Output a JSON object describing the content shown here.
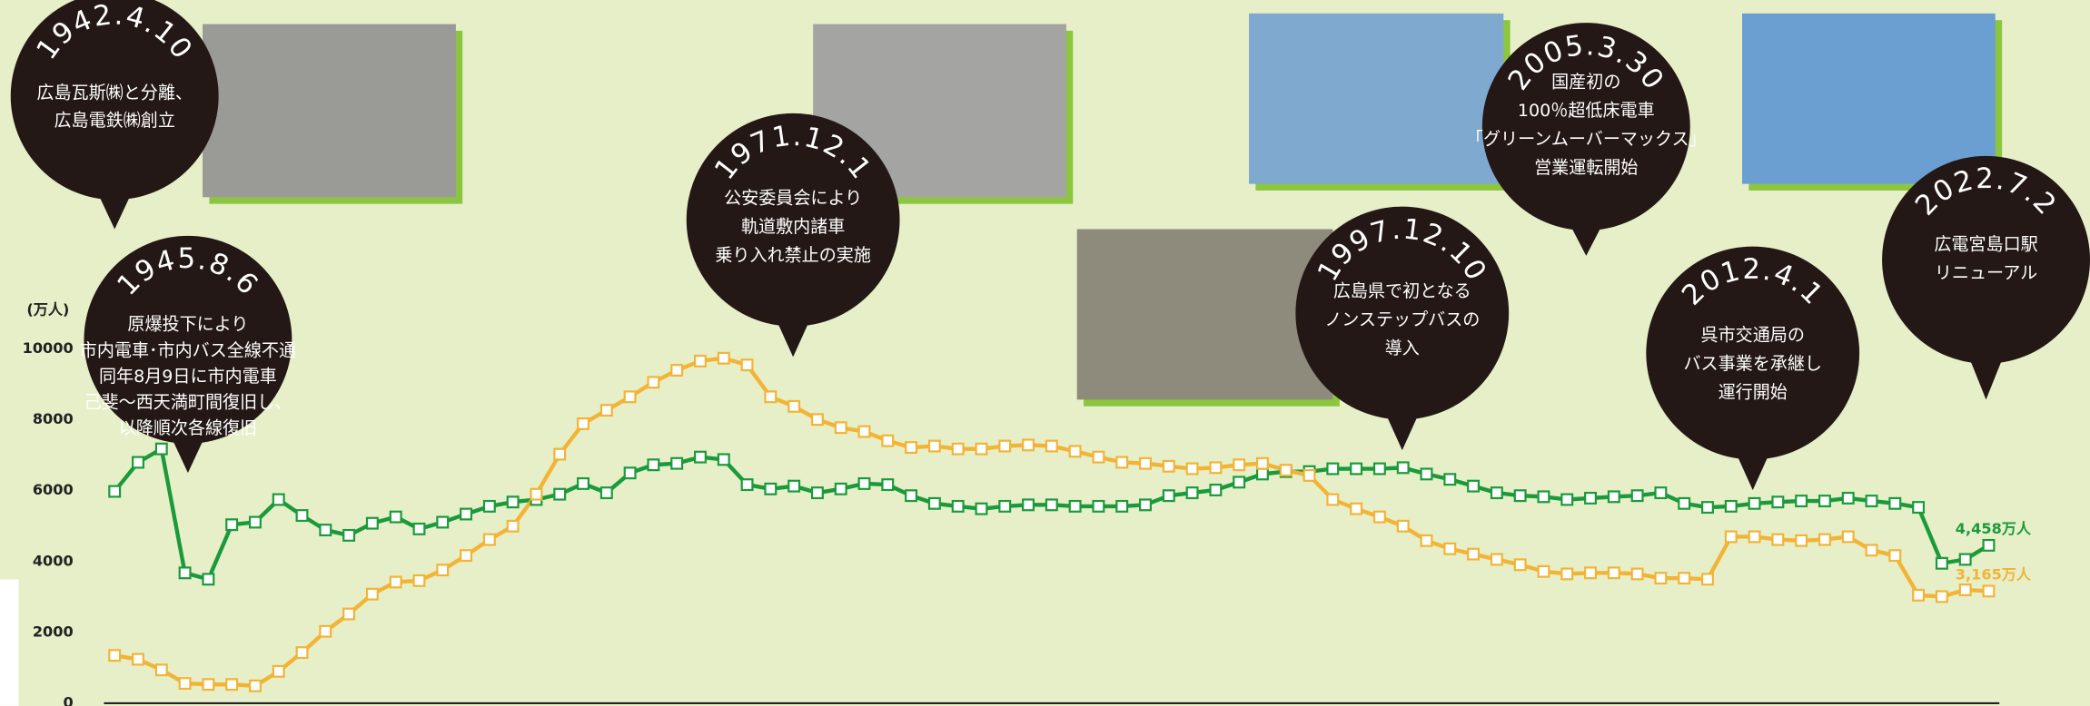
{
  "chart_data": {
    "type": "line",
    "y_label": "(万人)",
    "ylim": [
      0,
      10000
    ],
    "yticks": [
      0,
      2000,
      4000,
      6000,
      8000,
      10000
    ],
    "categories": [
      null,
      null,
      null,
      null,
      null,
      null,
      null,
      null,
      null,
      null,
      null,
      null,
      null,
      null,
      null,
      null,
      null,
      null,
      null,
      null,
      null,
      null,
      null,
      null,
      null,
      null,
      null,
      null,
      null,
      null,
      null,
      null,
      null,
      null,
      null,
      null,
      null,
      null,
      null,
      null,
      null,
      null,
      null,
      null,
      null,
      null,
      null,
      null,
      null,
      null,
      null,
      null,
      null,
      null,
      null,
      null,
      null,
      null,
      null,
      null,
      null,
      null,
      null,
      null,
      null,
      null,
      null,
      null,
      null,
      null,
      null,
      null,
      null,
      null,
      null,
      null,
      null,
      null,
      null,
      null,
      null
    ],
    "series": [
      {
        "color": "#1b9a3b",
        "values": [
          5980,
          6800,
          7180,
          3680,
          3500,
          5040,
          5110,
          5750,
          5300,
          4890,
          4740,
          5080,
          5260,
          4920,
          5110,
          5340,
          5560,
          5680,
          5750,
          5900,
          6200,
          5940,
          6500,
          6730,
          6770,
          6950,
          6880,
          6170,
          6050,
          6130,
          5940,
          6050,
          6200,
          6170,
          5860,
          5640,
          5560,
          5490,
          5560,
          5600,
          5600,
          5560,
          5560,
          5560,
          5600,
          5860,
          5940,
          6020,
          6240,
          6470,
          6540,
          6540,
          6620,
          6620,
          6620,
          6650,
          6470,
          6320,
          6130,
          5940,
          5860,
          5830,
          5750,
          5790,
          5830,
          5860,
          5940,
          5640,
          5530,
          5560,
          5640,
          5680,
          5710,
          5710,
          5790,
          5710,
          5640,
          5530,
          3950,
          4060,
          4458
        ],
        "value_labels": [
          null,
          null,
          null,
          null,
          null,
          null,
          null,
          null,
          null,
          null,
          null,
          null,
          null,
          null,
          null,
          null,
          null,
          null,
          null,
          null,
          null,
          null,
          null,
          null,
          null,
          null,
          null,
          null,
          null,
          null,
          null,
          null,
          null,
          null,
          null,
          null,
          null,
          null,
          null,
          null,
          null,
          null,
          null,
          null,
          null,
          null,
          null,
          null,
          null,
          null,
          null,
          null,
          null,
          null,
          null,
          null,
          null,
          null,
          null,
          null,
          null,
          null,
          null,
          null,
          null,
          null,
          null,
          null,
          null,
          null,
          null,
          null,
          null,
          null,
          null,
          null,
          null,
          null,
          null,
          null,
          "4,458万人"
        ]
      },
      {
        "color": "#f2b436",
        "values": [
          1350,
          1240,
          940,
          560,
          530,
          530,
          490,
          900,
          1430,
          2030,
          2520,
          3080,
          3420,
          3460,
          3760,
          4170,
          4620,
          5000,
          5900,
          7030,
          7890,
          8270,
          8650,
          9060,
          9400,
          9660,
          9740,
          9550,
          8650,
          8380,
          8010,
          7780,
          7670,
          7410,
          7220,
          7260,
          7180,
          7180,
          7260,
          7290,
          7260,
          7110,
          6950,
          6800,
          6770,
          6690,
          6620,
          6650,
          6730,
          6770,
          6580,
          6430,
          5750,
          5490,
          5260,
          5000,
          4590,
          4360,
          4210,
          4060,
          3910,
          3720,
          3650,
          3680,
          3680,
          3650,
          3530,
          3530,
          3500,
          4700,
          4700,
          4620,
          4590,
          4620,
          4700,
          4320,
          4170,
          3050,
          3010,
          3200,
          3165
        ],
        "value_labels": [
          null,
          null,
          null,
          null,
          null,
          null,
          null,
          null,
          null,
          null,
          null,
          null,
          null,
          null,
          null,
          null,
          null,
          null,
          null,
          null,
          null,
          null,
          null,
          null,
          null,
          null,
          null,
          null,
          null,
          null,
          null,
          null,
          null,
          null,
          null,
          null,
          null,
          null,
          null,
          null,
          null,
          null,
          null,
          null,
          null,
          null,
          null,
          null,
          null,
          null,
          null,
          null,
          null,
          null,
          null,
          null,
          null,
          null,
          null,
          null,
          null,
          null,
          null,
          null,
          null,
          null,
          null,
          null,
          null,
          null,
          null,
          null,
          null,
          null,
          null,
          null,
          null,
          null,
          null,
          null,
          "3,165万人"
        ]
      }
    ],
    "annotations": [
      {
        "date": "1942.4.10",
        "lines": [
          "広島瓦斯㈱と分離、",
          "広島電鉄㈱創立"
        ]
      },
      {
        "date": "1945.8.6",
        "lines": [
          "原爆投下により",
          "市内電車･市内バス全線不通",
          "同年8月9日に市内電車",
          "己斐〜西天満町間復旧し、",
          "以降順次各線復旧"
        ]
      },
      {
        "date": "1971.12.1",
        "lines": [
          "公安委員会により",
          "軌道敷内諸車",
          "乗り入れ禁止の実施"
        ]
      },
      {
        "date": "1997.12.10",
        "lines": [
          "広島県で初となる",
          "ノンステップバスの",
          "導入"
        ]
      },
      {
        "date": "2005.3.30",
        "lines": [
          "国産初の",
          "100％超低床電車",
          "｢グリーンムーバーマックス｣",
          "営業運転開始"
        ]
      },
      {
        "date": "2012.4.1",
        "lines": [
          "呉市交通局の",
          "バス事業を承継し",
          "運行開始"
        ]
      },
      {
        "date": "2022.7.2",
        "lines": [
          "広電宮島口駅",
          "リニューアル"
        ]
      }
    ]
  }
}
